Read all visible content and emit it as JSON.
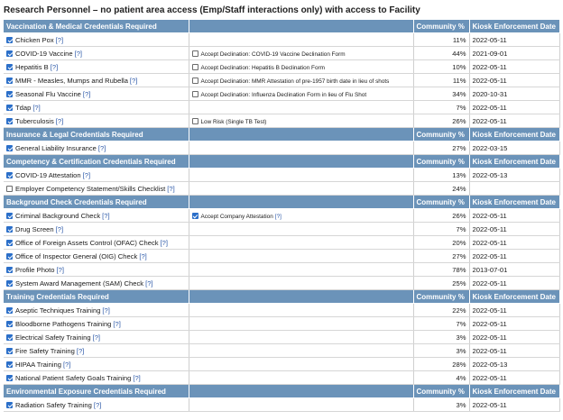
{
  "page_title": "Research Personnel – no patient area access (Emp/Staff interactions only) with access to Facility",
  "columns": {
    "community": "Community %",
    "kiosk": "Kiosk Enforcement Date"
  },
  "help_label": "[?]",
  "sections": [
    {
      "title": "Vaccination & Medical Credentials Required",
      "rows": [
        {
          "checked": true,
          "name": "Chicken Pox",
          "sub": null,
          "pct": "11%",
          "date": "2022-05-11"
        },
        {
          "checked": true,
          "name": "COVID-19 Vaccine",
          "sub": {
            "checked": false,
            "label": "Accept Declination: COVID-19 Vaccine Declination Form"
          },
          "pct": "44%",
          "date": "2021-09-01"
        },
        {
          "checked": true,
          "name": "Hepatitis B",
          "sub": {
            "checked": false,
            "label": "Accept Declination: Hepatitis B Declination Form"
          },
          "pct": "10%",
          "date": "2022-05-11"
        },
        {
          "checked": true,
          "name": "MMR - Measles, Mumps and Rubella",
          "sub": {
            "checked": false,
            "label": "Accept Declination: MMR Attestation of pre-1957 birth date in lieu of shots"
          },
          "pct": "11%",
          "date": "2022-05-11"
        },
        {
          "checked": true,
          "name": "Seasonal Flu Vaccine",
          "sub": {
            "checked": false,
            "label": "Accept Declination: Influenza Declination Form in lieu of Flu Shot"
          },
          "pct": "34%",
          "date": "2020-10-31"
        },
        {
          "checked": true,
          "name": "Tdap",
          "sub": null,
          "pct": "7%",
          "date": "2022-05-11"
        },
        {
          "checked": true,
          "name": "Tuberculosis",
          "sub": {
            "checked": false,
            "label": "Low Risk (Single TB Test)"
          },
          "pct": "26%",
          "date": "2022-05-11"
        }
      ]
    },
    {
      "title": "Insurance & Legal Credentials Required",
      "rows": [
        {
          "checked": true,
          "name": "General Liability Insurance",
          "sub": null,
          "pct": "27%",
          "date": "2022-03-15"
        }
      ]
    },
    {
      "title": "Competency & Certification Credentials Required",
      "rows": [
        {
          "checked": true,
          "name": "COVID-19 Attestation",
          "sub": null,
          "pct": "13%",
          "date": "2022-05-13"
        },
        {
          "checked": false,
          "name": "Employer Competency Statement/Skills Checklist",
          "sub": null,
          "pct": "24%",
          "date": ""
        }
      ]
    },
    {
      "title": "Background Check Credentials Required",
      "rows": [
        {
          "checked": true,
          "name": "Criminal Background Check",
          "sub": {
            "checked": true,
            "label": "Accept Company Attestation",
            "help": true
          },
          "pct": "26%",
          "date": "2022-05-11"
        },
        {
          "checked": true,
          "name": "Drug Screen",
          "sub": null,
          "pct": "7%",
          "date": "2022-05-11"
        },
        {
          "checked": true,
          "name": "Office of Foreign Assets Control (OFAC) Check",
          "sub": null,
          "pct": "20%",
          "date": "2022-05-11"
        },
        {
          "checked": true,
          "name": "Office of Inspector General (OIG) Check",
          "sub": null,
          "pct": "27%",
          "date": "2022-05-11"
        },
        {
          "checked": true,
          "name": "Profile Photo",
          "sub": null,
          "pct": "78%",
          "date": "2013-07-01"
        },
        {
          "checked": true,
          "name": "System Award Management (SAM) Check",
          "sub": null,
          "pct": "25%",
          "date": "2022-05-11"
        }
      ]
    },
    {
      "title": "Training Credentials Required",
      "rows": [
        {
          "checked": true,
          "name": "Aseptic Techniques Training",
          "sub": null,
          "pct": "22%",
          "date": "2022-05-11"
        },
        {
          "checked": true,
          "name": "Bloodborne Pathogens Training",
          "sub": null,
          "pct": "7%",
          "date": "2022-05-11"
        },
        {
          "checked": true,
          "name": "Electrical Safety Training",
          "sub": null,
          "pct": "3%",
          "date": "2022-05-11"
        },
        {
          "checked": true,
          "name": "Fire Safety Training",
          "sub": null,
          "pct": "3%",
          "date": "2022-05-11"
        },
        {
          "checked": true,
          "name": "HIPAA Training",
          "sub": null,
          "pct": "28%",
          "date": "2022-05-13"
        },
        {
          "checked": true,
          "name": "National Patient Safety Goals Training",
          "sub": null,
          "pct": "4%",
          "date": "2022-05-11"
        }
      ]
    },
    {
      "title": "Environmental Exposure Credentials Required",
      "rows": [
        {
          "checked": true,
          "name": "Radiation Safety Training",
          "sub": null,
          "pct": "3%",
          "date": "2022-05-11"
        }
      ]
    }
  ]
}
